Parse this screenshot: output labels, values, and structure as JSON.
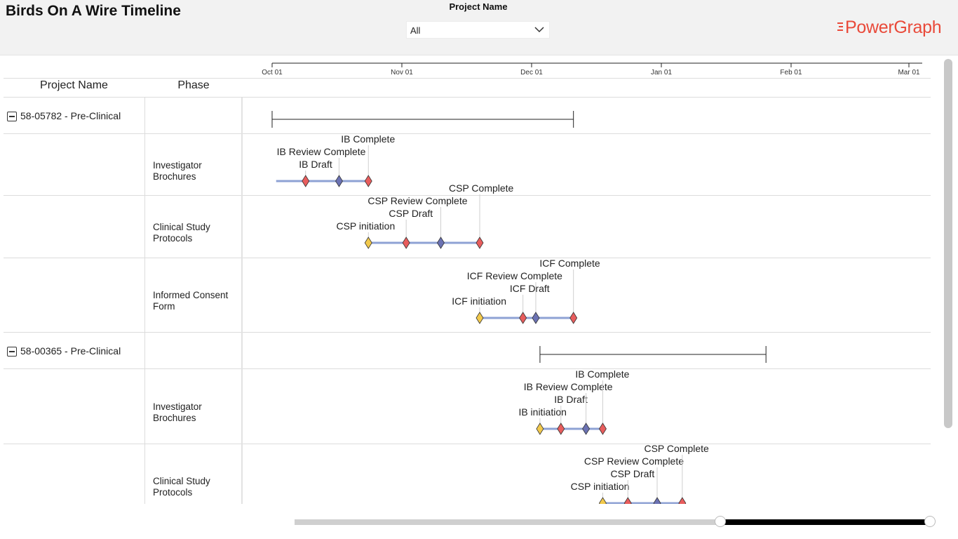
{
  "header": {
    "title": "Birds On A Wire Timeline",
    "filter_label": "Project Name",
    "filter_value": "All",
    "brand_name": "PowerGraph",
    "brand_color": "#e94a3a"
  },
  "table": {
    "col_project": "Project Name",
    "col_phase": "Phase"
  },
  "axis": {
    "months": [
      "Oct 01",
      "Nov 01",
      "Dec 01",
      "Jan 01",
      "Feb 01",
      "Mar 01"
    ]
  },
  "colors": {
    "bar": "#8ea2d4",
    "initiation": "#f2c94c",
    "draft": "#e85d5d",
    "review": "#6b72b3",
    "complete": "#e85d5d",
    "span": "#222222"
  },
  "projects": [
    {
      "name": "58-05782 - Pre-Clinical",
      "span": {
        "start": "Oct 01",
        "end": "Dec 11"
      },
      "phases": [
        {
          "name_lines": [
            "Investigator",
            "Brochures"
          ],
          "milestones": [
            {
              "label": "IB Draft",
              "date": "Oct 09",
              "kind": "draft"
            },
            {
              "label": "IB Review Complete",
              "date": "Oct 17",
              "kind": "review"
            },
            {
              "label": "IB Complete",
              "date": "Oct 24",
              "kind": "complete"
            }
          ]
        },
        {
          "name_lines": [
            "Clinical Study",
            "Protocols"
          ],
          "milestones": [
            {
              "label": "CSP initiation",
              "date": "Oct 24",
              "kind": "initiation"
            },
            {
              "label": "CSP Draft",
              "date": "Nov 02",
              "kind": "draft"
            },
            {
              "label": "CSP Review Complete",
              "date": "Nov 10",
              "kind": "review"
            },
            {
              "label": "CSP Complete",
              "date": "Nov 19",
              "kind": "complete"
            }
          ]
        },
        {
          "name_lines": [
            "Informed Consent",
            "Form"
          ],
          "milestones": [
            {
              "label": "ICF initiation",
              "date": "Nov 19",
              "kind": "initiation"
            },
            {
              "label": "ICF Draft",
              "date": "Nov 29",
              "kind": "draft"
            },
            {
              "label": "ICF Review Complete",
              "date": "Dec 02",
              "kind": "review"
            },
            {
              "label": "ICF Complete",
              "date": "Dec 11",
              "kind": "complete"
            }
          ]
        }
      ]
    },
    {
      "name": "58-00365 - Pre-Clinical",
      "span": {
        "start": "Dec 03",
        "end": "Jan 26"
      },
      "phases": [
        {
          "name_lines": [
            "Investigator",
            "Brochures"
          ],
          "milestones": [
            {
              "label": "IB initiation",
              "date": "Dec 03",
              "kind": "initiation"
            },
            {
              "label": "IB Draft",
              "date": "Dec 08",
              "kind": "draft"
            },
            {
              "label": "IB Review Complete",
              "date": "Dec 14",
              "kind": "review"
            },
            {
              "label": "IB Complete",
              "date": "Dec 18",
              "kind": "complete"
            }
          ]
        },
        {
          "name_lines": [
            "Clinical Study",
            "Protocols"
          ],
          "milestones": [
            {
              "label": "CSP initiation",
              "date": "Dec 18",
              "kind": "initiation"
            },
            {
              "label": "CSP Draft",
              "date": "Dec 24",
              "kind": "draft"
            },
            {
              "label": "CSP Review Complete",
              "date": "Dec 31",
              "kind": "review"
            },
            {
              "label": "CSP Complete",
              "date": "Jan 06",
              "kind": "complete"
            }
          ]
        }
      ]
    }
  ],
  "range_slider": {
    "start_fraction": 0.667,
    "end_fraction": 1.0
  }
}
